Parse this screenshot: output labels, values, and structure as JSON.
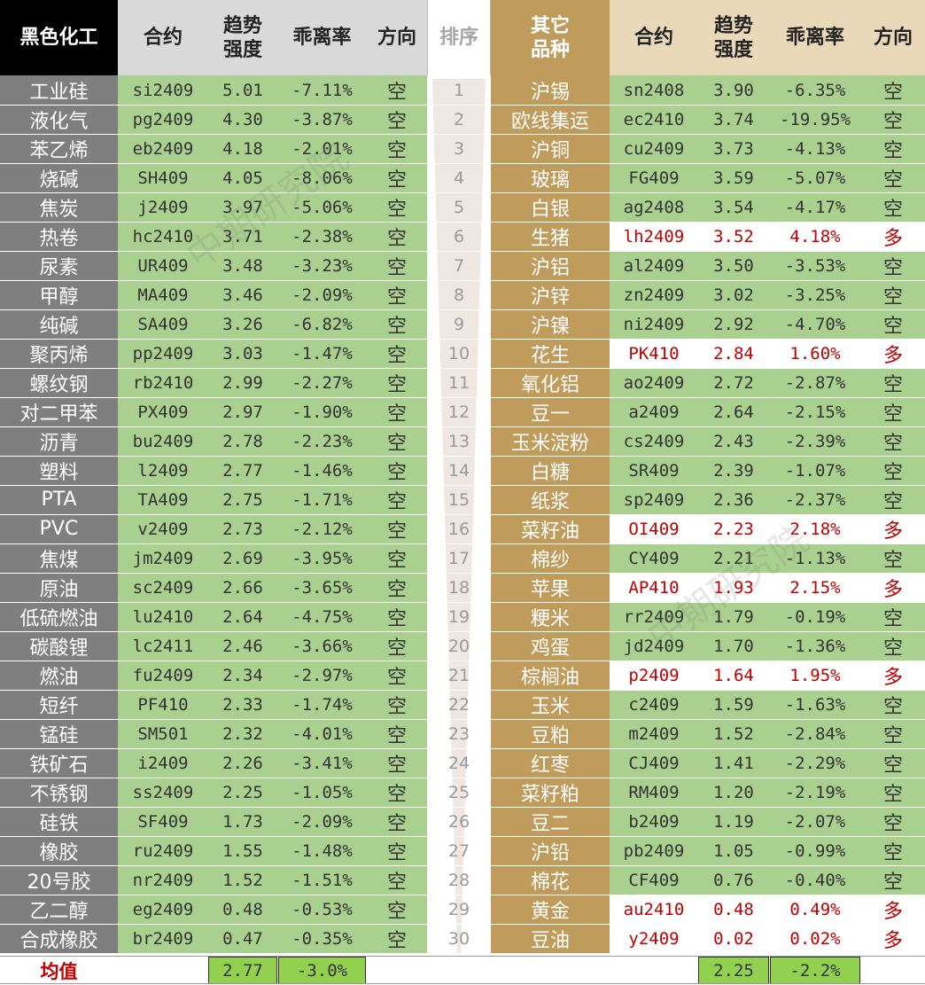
{
  "headers": {
    "left_category": "黑色化工",
    "contract": "合约",
    "strength_line1": "趋势",
    "strength_line2": "强度",
    "deviation": "乖离率",
    "direction": "方向",
    "rank": "排序",
    "right_category_line1": "其它",
    "right_category_line2": "品种"
  },
  "colors": {
    "green": "#a9d08e",
    "gray": "#7f7f7f",
    "gold": "#bf9b5c",
    "red_text": "#c00000",
    "avg_green": "#92d050"
  },
  "ranks": [
    "1",
    "2",
    "3",
    "4",
    "5",
    "6",
    "7",
    "8",
    "9",
    "10",
    "11",
    "12",
    "13",
    "14",
    "15",
    "16",
    "17",
    "18",
    "19",
    "20",
    "21",
    "22",
    "23",
    "24",
    "25",
    "26",
    "27",
    "28",
    "29",
    "30"
  ],
  "left_rows": [
    {
      "name": "工业硅",
      "contract": "si2409",
      "strength": "5.01",
      "deviation": "-7.11%",
      "direction": "空"
    },
    {
      "name": "液化气",
      "contract": "pg2409",
      "strength": "4.30",
      "deviation": "-3.87%",
      "direction": "空"
    },
    {
      "name": "苯乙烯",
      "contract": "eb2409",
      "strength": "4.18",
      "deviation": "-2.01%",
      "direction": "空"
    },
    {
      "name": "烧碱",
      "contract": "SH409",
      "strength": "4.05",
      "deviation": "-8.06%",
      "direction": "空"
    },
    {
      "name": "焦炭",
      "contract": "j2409",
      "strength": "3.97",
      "deviation": "-5.06%",
      "direction": "空"
    },
    {
      "name": "热卷",
      "contract": "hc2410",
      "strength": "3.71",
      "deviation": "-2.38%",
      "direction": "空"
    },
    {
      "name": "尿素",
      "contract": "UR409",
      "strength": "3.48",
      "deviation": "-3.23%",
      "direction": "空"
    },
    {
      "name": "甲醇",
      "contract": "MA409",
      "strength": "3.46",
      "deviation": "-2.09%",
      "direction": "空"
    },
    {
      "name": "纯碱",
      "contract": "SA409",
      "strength": "3.26",
      "deviation": "-6.82%",
      "direction": "空"
    },
    {
      "name": "聚丙烯",
      "contract": "pp2409",
      "strength": "3.03",
      "deviation": "-1.47%",
      "direction": "空"
    },
    {
      "name": "螺纹钢",
      "contract": "rb2410",
      "strength": "2.99",
      "deviation": "-2.27%",
      "direction": "空"
    },
    {
      "name": "对二甲苯",
      "contract": "PX409",
      "strength": "2.97",
      "deviation": "-1.90%",
      "direction": "空"
    },
    {
      "name": "沥青",
      "contract": "bu2409",
      "strength": "2.78",
      "deviation": "-2.23%",
      "direction": "空"
    },
    {
      "name": "塑料",
      "contract": "l2409",
      "strength": "2.77",
      "deviation": "-1.46%",
      "direction": "空"
    },
    {
      "name": "PTA",
      "contract": "TA409",
      "strength": "2.75",
      "deviation": "-1.71%",
      "direction": "空"
    },
    {
      "name": "PVC",
      "contract": "v2409",
      "strength": "2.73",
      "deviation": "-2.12%",
      "direction": "空"
    },
    {
      "name": "焦煤",
      "contract": "jm2409",
      "strength": "2.69",
      "deviation": "-3.95%",
      "direction": "空"
    },
    {
      "name": "原油",
      "contract": "sc2409",
      "strength": "2.66",
      "deviation": "-3.65%",
      "direction": "空"
    },
    {
      "name": "低硫燃油",
      "contract": "lu2410",
      "strength": "2.64",
      "deviation": "-4.75%",
      "direction": "空"
    },
    {
      "name": "碳酸锂",
      "contract": "lc2411",
      "strength": "2.46",
      "deviation": "-3.66%",
      "direction": "空"
    },
    {
      "name": "燃油",
      "contract": "fu2409",
      "strength": "2.34",
      "deviation": "-2.97%",
      "direction": "空"
    },
    {
      "name": "短纤",
      "contract": "PF410",
      "strength": "2.33",
      "deviation": "-1.74%",
      "direction": "空"
    },
    {
      "name": "锰硅",
      "contract": "SM501",
      "strength": "2.32",
      "deviation": "-4.01%",
      "direction": "空"
    },
    {
      "name": "铁矿石",
      "contract": "i2409",
      "strength": "2.26",
      "deviation": "-3.41%",
      "direction": "空"
    },
    {
      "name": "不锈钢",
      "contract": "ss2409",
      "strength": "2.25",
      "deviation": "-1.05%",
      "direction": "空"
    },
    {
      "name": "硅铁",
      "contract": "SF409",
      "strength": "1.73",
      "deviation": "-2.09%",
      "direction": "空"
    },
    {
      "name": "橡胶",
      "contract": "ru2409",
      "strength": "1.55",
      "deviation": "-1.48%",
      "direction": "空"
    },
    {
      "name": "20号胶",
      "contract": "nr2409",
      "strength": "1.52",
      "deviation": "-1.51%",
      "direction": "空"
    },
    {
      "name": "乙二醇",
      "contract": "eg2409",
      "strength": "0.48",
      "deviation": "-0.53%",
      "direction": "空"
    },
    {
      "name": "合成橡胶",
      "contract": "br2409",
      "strength": "0.47",
      "deviation": "-0.35%",
      "direction": "空"
    }
  ],
  "right_rows": [
    {
      "name": "沪锡",
      "contract": "sn2408",
      "strength": "3.90",
      "deviation": "-6.35%",
      "direction": "空",
      "long": false
    },
    {
      "name": "欧线集运",
      "contract": "ec2410",
      "strength": "3.74",
      "deviation": "-19.95%",
      "direction": "空",
      "long": false
    },
    {
      "name": "沪铜",
      "contract": "cu2409",
      "strength": "3.73",
      "deviation": "-4.13%",
      "direction": "空",
      "long": false
    },
    {
      "name": "玻璃",
      "contract": "FG409",
      "strength": "3.59",
      "deviation": "-5.07%",
      "direction": "空",
      "long": false
    },
    {
      "name": "白银",
      "contract": "ag2408",
      "strength": "3.54",
      "deviation": "-4.17%",
      "direction": "空",
      "long": false
    },
    {
      "name": "生猪",
      "contract": "lh2409",
      "strength": "3.52",
      "deviation": "4.18%",
      "direction": "多",
      "long": true
    },
    {
      "name": "沪铝",
      "contract": "al2409",
      "strength": "3.50",
      "deviation": "-3.53%",
      "direction": "空",
      "long": false
    },
    {
      "name": "沪锌",
      "contract": "zn2409",
      "strength": "3.02",
      "deviation": "-3.25%",
      "direction": "空",
      "long": false
    },
    {
      "name": "沪镍",
      "contract": "ni2409",
      "strength": "2.92",
      "deviation": "-4.70%",
      "direction": "空",
      "long": false
    },
    {
      "name": "花生",
      "contract": "PK410",
      "strength": "2.84",
      "deviation": "1.60%",
      "direction": "多",
      "long": true
    },
    {
      "name": "氧化铝",
      "contract": "ao2409",
      "strength": "2.72",
      "deviation": "-2.87%",
      "direction": "空",
      "long": false
    },
    {
      "name": "豆一",
      "contract": "a2409",
      "strength": "2.64",
      "deviation": "-2.15%",
      "direction": "空",
      "long": false
    },
    {
      "name": "玉米淀粉",
      "contract": "cs2409",
      "strength": "2.43",
      "deviation": "-2.39%",
      "direction": "空",
      "long": false
    },
    {
      "name": "白糖",
      "contract": "SR409",
      "strength": "2.39",
      "deviation": "-1.07%",
      "direction": "空",
      "long": false
    },
    {
      "name": "纸浆",
      "contract": "sp2409",
      "strength": "2.36",
      "deviation": "-2.37%",
      "direction": "空",
      "long": false
    },
    {
      "name": "菜籽油",
      "contract": "OI409",
      "strength": "2.23",
      "deviation": "2.18%",
      "direction": "多",
      "long": true
    },
    {
      "name": "棉纱",
      "contract": "CY409",
      "strength": "2.21",
      "deviation": "-1.13%",
      "direction": "空",
      "long": false
    },
    {
      "name": "苹果",
      "contract": "AP410",
      "strength": "1.93",
      "deviation": "2.15%",
      "direction": "多",
      "long": true
    },
    {
      "name": "粳米",
      "contract": "rr2409",
      "strength": "1.79",
      "deviation": "-0.19%",
      "direction": "空",
      "long": false
    },
    {
      "name": "鸡蛋",
      "contract": "jd2409",
      "strength": "1.70",
      "deviation": "-1.36%",
      "direction": "空",
      "long": false
    },
    {
      "name": "棕榈油",
      "contract": "p2409",
      "strength": "1.64",
      "deviation": "1.95%",
      "direction": "多",
      "long": true
    },
    {
      "name": "玉米",
      "contract": "c2409",
      "strength": "1.59",
      "deviation": "-1.63%",
      "direction": "空",
      "long": false
    },
    {
      "name": "豆粕",
      "contract": "m2409",
      "strength": "1.52",
      "deviation": "-2.84%",
      "direction": "空",
      "long": false
    },
    {
      "name": "红枣",
      "contract": "CJ409",
      "strength": "1.41",
      "deviation": "-2.29%",
      "direction": "空",
      "long": false
    },
    {
      "name": "菜籽粕",
      "contract": "RM409",
      "strength": "1.20",
      "deviation": "-2.19%",
      "direction": "空",
      "long": false
    },
    {
      "name": "豆二",
      "contract": "b2409",
      "strength": "1.19",
      "deviation": "-2.07%",
      "direction": "空",
      "long": false
    },
    {
      "name": "沪铅",
      "contract": "pb2409",
      "strength": "1.05",
      "deviation": "-0.99%",
      "direction": "空",
      "long": false
    },
    {
      "name": "棉花",
      "contract": "CF409",
      "strength": "0.76",
      "deviation": "-0.40%",
      "direction": "空",
      "long": false
    },
    {
      "name": "黄金",
      "contract": "au2410",
      "strength": "0.48",
      "deviation": "0.49%",
      "direction": "多",
      "long": true
    },
    {
      "name": "豆油",
      "contract": "y2409",
      "strength": "0.02",
      "deviation": "0.02%",
      "direction": "多",
      "long": true
    }
  ],
  "averages": {
    "label": "均值",
    "left_strength": "2.77",
    "left_deviation": "-3.0%",
    "right_strength": "2.25",
    "right_deviation": "-2.2%"
  }
}
